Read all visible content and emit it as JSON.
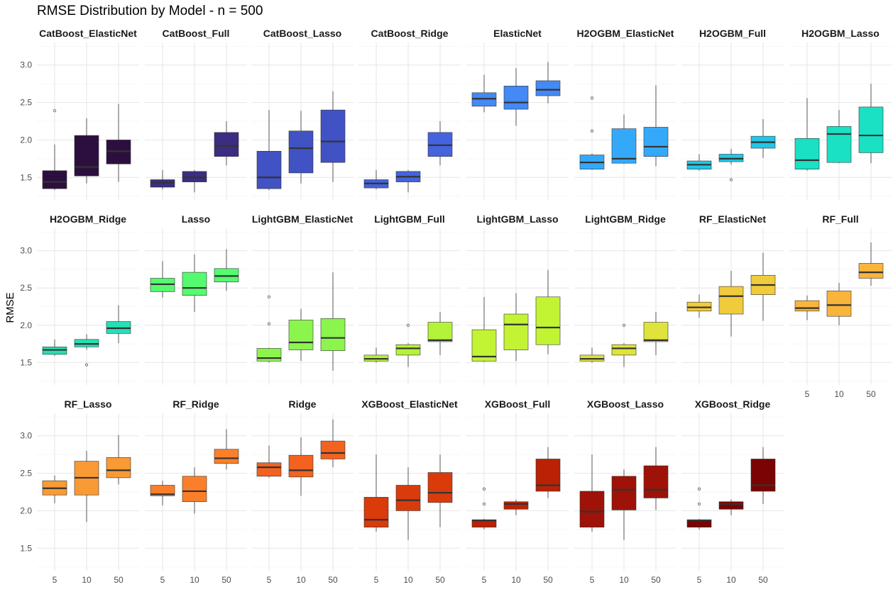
{
  "chart_data": {
    "type": "boxplot",
    "title": "RMSE Distribution by Model - n = 500",
    "ylabel": "RMSE",
    "xlabel": "",
    "ylim": [
      1.2,
      3.3
    ],
    "y_ticks": [
      1.5,
      2.0,
      2.5,
      3.0
    ],
    "y_tick_labels": [
      "1.5",
      "2.0",
      "2.5",
      "3.0"
    ],
    "categories": [
      "5",
      "10",
      "50"
    ],
    "grid": true,
    "facets": [
      {
        "name": "CatBoost_ElasticNet",
        "color": "#2d0f3f",
        "boxes": [
          {
            "low": 1.33,
            "q1": 1.35,
            "median": 1.44,
            "q3": 1.59,
            "high": 1.94,
            "outliers": [
              2.39
            ]
          },
          {
            "low": 1.42,
            "q1": 1.52,
            "median": 1.64,
            "q3": 2.06,
            "high": 2.29,
            "outliers": []
          },
          {
            "low": 1.44,
            "q1": 1.68,
            "median": 1.85,
            "q3": 2.0,
            "high": 2.48,
            "outliers": []
          }
        ]
      },
      {
        "name": "CatBoost_Full",
        "color": "#3c2d82",
        "boxes": [
          {
            "low": 1.34,
            "q1": 1.37,
            "median": 1.43,
            "q3": 1.47,
            "high": 1.6,
            "outliers": []
          },
          {
            "low": 1.3,
            "q1": 1.44,
            "median": 1.5,
            "q3": 1.58,
            "high": 1.6,
            "outliers": []
          },
          {
            "low": 1.66,
            "q1": 1.78,
            "median": 1.92,
            "q3": 2.1,
            "high": 2.25,
            "outliers": []
          }
        ]
      },
      {
        "name": "CatBoost_Lasso",
        "color": "#4052c4",
        "boxes": [
          {
            "low": 1.33,
            "q1": 1.35,
            "median": 1.5,
            "q3": 1.85,
            "high": 2.4,
            "outliers": []
          },
          {
            "low": 1.42,
            "q1": 1.56,
            "median": 1.89,
            "q3": 2.12,
            "high": 2.39,
            "outliers": []
          },
          {
            "low": 1.44,
            "q1": 1.7,
            "median": 1.98,
            "q3": 2.4,
            "high": 2.65,
            "outliers": []
          }
        ]
      },
      {
        "name": "CatBoost_Ridge",
        "color": "#4463dd",
        "boxes": [
          {
            "low": 1.34,
            "q1": 1.36,
            "median": 1.42,
            "q3": 1.47,
            "high": 1.6,
            "outliers": []
          },
          {
            "low": 1.3,
            "q1": 1.44,
            "median": 1.51,
            "q3": 1.58,
            "high": 1.6,
            "outliers": []
          },
          {
            "low": 1.66,
            "q1": 1.78,
            "median": 1.93,
            "q3": 2.1,
            "high": 2.25,
            "outliers": []
          }
        ]
      },
      {
        "name": "ElasticNet",
        "color": "#4489f5",
        "boxes": [
          {
            "low": 2.37,
            "q1": 2.45,
            "median": 2.55,
            "q3": 2.63,
            "high": 2.87,
            "outliers": []
          },
          {
            "low": 2.19,
            "q1": 2.41,
            "median": 2.5,
            "q3": 2.72,
            "high": 2.96,
            "outliers": []
          },
          {
            "low": 2.49,
            "q1": 2.59,
            "median": 2.67,
            "q3": 2.79,
            "high": 3.04,
            "outliers": []
          }
        ]
      },
      {
        "name": "H2OGBM_ElasticNet",
        "color": "#35a9f9",
        "boxes": [
          {
            "low": 1.6,
            "q1": 1.61,
            "median": 1.7,
            "q3": 1.8,
            "high": 1.82,
            "outliers": [
              2.12,
              2.56
            ]
          },
          {
            "low": 1.68,
            "q1": 1.69,
            "median": 1.75,
            "q3": 2.15,
            "high": 2.34,
            "outliers": []
          },
          {
            "low": 1.65,
            "q1": 1.78,
            "median": 1.91,
            "q3": 2.17,
            "high": 2.73,
            "outliers": []
          }
        ]
      },
      {
        "name": "H2OGBM_Full",
        "color": "#22c6e6",
        "boxes": [
          {
            "low": 1.59,
            "q1": 1.61,
            "median": 1.67,
            "q3": 1.72,
            "high": 1.81,
            "outliers": []
          },
          {
            "low": 1.67,
            "q1": 1.71,
            "median": 1.75,
            "q3": 1.81,
            "high": 1.88,
            "outliers": [
              1.47
            ]
          },
          {
            "low": 1.76,
            "q1": 1.89,
            "median": 1.97,
            "q3": 2.05,
            "high": 2.28,
            "outliers": []
          }
        ]
      },
      {
        "name": "H2OGBM_Lasso",
        "color": "#1ae0c4",
        "boxes": [
          {
            "low": 1.59,
            "q1": 1.61,
            "median": 1.73,
            "q3": 2.02,
            "high": 2.56,
            "outliers": []
          },
          {
            "low": 1.69,
            "q1": 1.7,
            "median": 2.08,
            "q3": 2.18,
            "high": 2.4,
            "outliers": []
          },
          {
            "low": 1.69,
            "q1": 1.83,
            "median": 2.06,
            "q3": 2.44,
            "high": 2.75,
            "outliers": []
          }
        ]
      },
      {
        "name": "H2OGBM_Ridge",
        "color": "#25e0b4",
        "boxes": [
          {
            "low": 1.59,
            "q1": 1.61,
            "median": 1.67,
            "q3": 1.71,
            "high": 1.81,
            "outliers": []
          },
          {
            "low": 1.67,
            "q1": 1.71,
            "median": 1.75,
            "q3": 1.81,
            "high": 1.88,
            "outliers": [
              1.47
            ]
          },
          {
            "low": 1.76,
            "q1": 1.89,
            "median": 1.96,
            "q3": 2.05,
            "high": 2.27,
            "outliers": []
          }
        ]
      },
      {
        "name": "Lasso",
        "color": "#55fb6f",
        "boxes": [
          {
            "low": 2.37,
            "q1": 2.45,
            "median": 2.55,
            "q3": 2.63,
            "high": 2.86,
            "outliers": []
          },
          {
            "low": 2.18,
            "q1": 2.4,
            "median": 2.5,
            "q3": 2.71,
            "high": 2.95,
            "outliers": []
          },
          {
            "low": 2.46,
            "q1": 2.58,
            "median": 2.66,
            "q3": 2.76,
            "high": 3.02,
            "outliers": []
          }
        ]
      },
      {
        "name": "LightGBM_ElasticNet",
        "color": "#8bf54e",
        "boxes": [
          {
            "low": 1.5,
            "q1": 1.52,
            "median": 1.56,
            "q3": 1.69,
            "high": 1.7,
            "outliers": [
              2.02,
              2.38
            ]
          },
          {
            "low": 1.52,
            "q1": 1.67,
            "median": 1.77,
            "q3": 2.07,
            "high": 2.22,
            "outliers": []
          },
          {
            "low": 1.39,
            "q1": 1.66,
            "median": 1.83,
            "q3": 2.09,
            "high": 2.71,
            "outliers": []
          }
        ]
      },
      {
        "name": "LightGBM_Full",
        "color": "#b5f23a",
        "boxes": [
          {
            "low": 1.5,
            "q1": 1.52,
            "median": 1.55,
            "q3": 1.6,
            "high": 1.7,
            "outliers": []
          },
          {
            "low": 1.44,
            "q1": 1.6,
            "median": 1.69,
            "q3": 1.74,
            "high": 1.76,
            "outliers": [
              2.0
            ]
          },
          {
            "low": 1.6,
            "q1": 1.78,
            "median": 1.8,
            "q3": 2.04,
            "high": 2.18,
            "outliers": []
          }
        ]
      },
      {
        "name": "LightGBM_Lasso",
        "color": "#c2f434",
        "boxes": [
          {
            "low": 1.51,
            "q1": 1.52,
            "median": 1.58,
            "q3": 1.94,
            "high": 2.38,
            "outliers": []
          },
          {
            "low": 1.52,
            "q1": 1.67,
            "median": 2.01,
            "q3": 2.15,
            "high": 2.43,
            "outliers": []
          },
          {
            "low": 1.61,
            "q1": 1.74,
            "median": 1.97,
            "q3": 2.38,
            "high": 2.74,
            "outliers": []
          }
        ]
      },
      {
        "name": "LightGBM_Ridge",
        "color": "#dfe33b",
        "boxes": [
          {
            "low": 1.5,
            "q1": 1.52,
            "median": 1.55,
            "q3": 1.6,
            "high": 1.7,
            "outliers": []
          },
          {
            "low": 1.44,
            "q1": 1.6,
            "median": 1.69,
            "q3": 1.74,
            "high": 1.76,
            "outliers": [
              2.0
            ]
          },
          {
            "low": 1.6,
            "q1": 1.78,
            "median": 1.8,
            "q3": 2.04,
            "high": 2.18,
            "outliers": []
          }
        ]
      },
      {
        "name": "RF_ElasticNet",
        "color": "#f0cb3c",
        "boxes": [
          {
            "low": 2.1,
            "q1": 2.19,
            "median": 2.24,
            "q3": 2.31,
            "high": 2.41,
            "outliers": []
          },
          {
            "low": 1.85,
            "q1": 2.15,
            "median": 2.39,
            "q3": 2.52,
            "high": 2.73,
            "outliers": []
          },
          {
            "low": 2.06,
            "q1": 2.41,
            "median": 2.54,
            "q3": 2.67,
            "high": 2.97,
            "outliers": []
          }
        ]
      },
      {
        "name": "RF_Full",
        "color": "#f9b43b",
        "boxes": [
          {
            "low": 2.07,
            "q1": 2.19,
            "median": 2.23,
            "q3": 2.33,
            "high": 2.4,
            "outliers": []
          },
          {
            "low": 2.0,
            "q1": 2.12,
            "median": 2.27,
            "q3": 2.46,
            "high": 2.57,
            "outliers": []
          },
          {
            "low": 2.53,
            "q1": 2.63,
            "median": 2.71,
            "q3": 2.83,
            "high": 3.11,
            "outliers": []
          }
        ]
      },
      {
        "name": "RF_Lasso",
        "color": "#fa9a35",
        "boxes": [
          {
            "low": 2.1,
            "q1": 2.21,
            "median": 2.3,
            "q3": 2.4,
            "high": 2.47,
            "outliers": []
          },
          {
            "low": 1.85,
            "q1": 2.21,
            "median": 2.44,
            "q3": 2.66,
            "high": 2.8,
            "outliers": []
          },
          {
            "low": 2.35,
            "q1": 2.44,
            "median": 2.54,
            "q3": 2.71,
            "high": 3.01,
            "outliers": []
          }
        ]
      },
      {
        "name": "RF_Ridge",
        "color": "#fb7f2a",
        "boxes": [
          {
            "low": 2.07,
            "q1": 2.2,
            "median": 2.22,
            "q3": 2.34,
            "high": 2.4,
            "outliers": []
          },
          {
            "low": 1.96,
            "q1": 2.12,
            "median": 2.26,
            "q3": 2.46,
            "high": 2.58,
            "outliers": []
          },
          {
            "low": 2.55,
            "q1": 2.63,
            "median": 2.7,
            "q3": 2.82,
            "high": 3.09,
            "outliers": []
          }
        ]
      },
      {
        "name": "Ridge",
        "color": "#f3621f",
        "boxes": [
          {
            "low": 2.44,
            "q1": 2.46,
            "median": 2.58,
            "q3": 2.64,
            "high": 2.87,
            "outliers": []
          },
          {
            "low": 2.2,
            "q1": 2.45,
            "median": 2.54,
            "q3": 2.74,
            "high": 2.98,
            "outliers": []
          },
          {
            "low": 2.58,
            "q1": 2.69,
            "median": 2.77,
            "q3": 2.93,
            "high": 3.22,
            "outliers": []
          }
        ]
      },
      {
        "name": "XGBoost_ElasticNet",
        "color": "#d93b0b",
        "boxes": [
          {
            "low": 1.72,
            "q1": 1.78,
            "median": 1.88,
            "q3": 2.18,
            "high": 2.75,
            "outliers": []
          },
          {
            "low": 1.61,
            "q1": 2.0,
            "median": 2.14,
            "q3": 2.34,
            "high": 2.58,
            "outliers": []
          },
          {
            "low": 1.78,
            "q1": 2.11,
            "median": 2.24,
            "q3": 2.51,
            "high": 2.75,
            "outliers": []
          }
        ]
      },
      {
        "name": "XGBoost_Full",
        "color": "#bb2105",
        "boxes": [
          {
            "low": 1.75,
            "q1": 1.78,
            "median": 1.87,
            "q3": 1.88,
            "high": 1.89,
            "outliers": [
              2.09,
              2.29
            ]
          },
          {
            "low": 1.94,
            "q1": 2.02,
            "median": 2.09,
            "q3": 2.12,
            "high": 2.15,
            "outliers": []
          },
          {
            "low": 2.17,
            "q1": 2.26,
            "median": 2.34,
            "q3": 2.69,
            "high": 2.85,
            "outliers": []
          }
        ]
      },
      {
        "name": "XGBoost_Lasso",
        "color": "#9e1208",
        "boxes": [
          {
            "low": 1.72,
            "q1": 1.78,
            "median": 1.99,
            "q3": 2.26,
            "high": 2.75,
            "outliers": []
          },
          {
            "low": 1.61,
            "q1": 2.01,
            "median": 2.28,
            "q3": 2.46,
            "high": 2.55,
            "outliers": []
          },
          {
            "low": 2.01,
            "q1": 2.17,
            "median": 2.28,
            "q3": 2.6,
            "high": 2.85,
            "outliers": []
          }
        ]
      },
      {
        "name": "XGBoost_Ridge",
        "color": "#7a0403",
        "boxes": [
          {
            "low": 1.75,
            "q1": 1.78,
            "median": 1.87,
            "q3": 1.88,
            "high": 1.89,
            "outliers": [
              2.09,
              2.29
            ]
          },
          {
            "low": 1.94,
            "q1": 2.02,
            "median": 2.09,
            "q3": 2.12,
            "high": 2.15,
            "outliers": []
          },
          {
            "low": 2.09,
            "q1": 2.26,
            "median": 2.34,
            "q3": 2.69,
            "high": 2.85,
            "outliers": []
          }
        ]
      }
    ]
  }
}
